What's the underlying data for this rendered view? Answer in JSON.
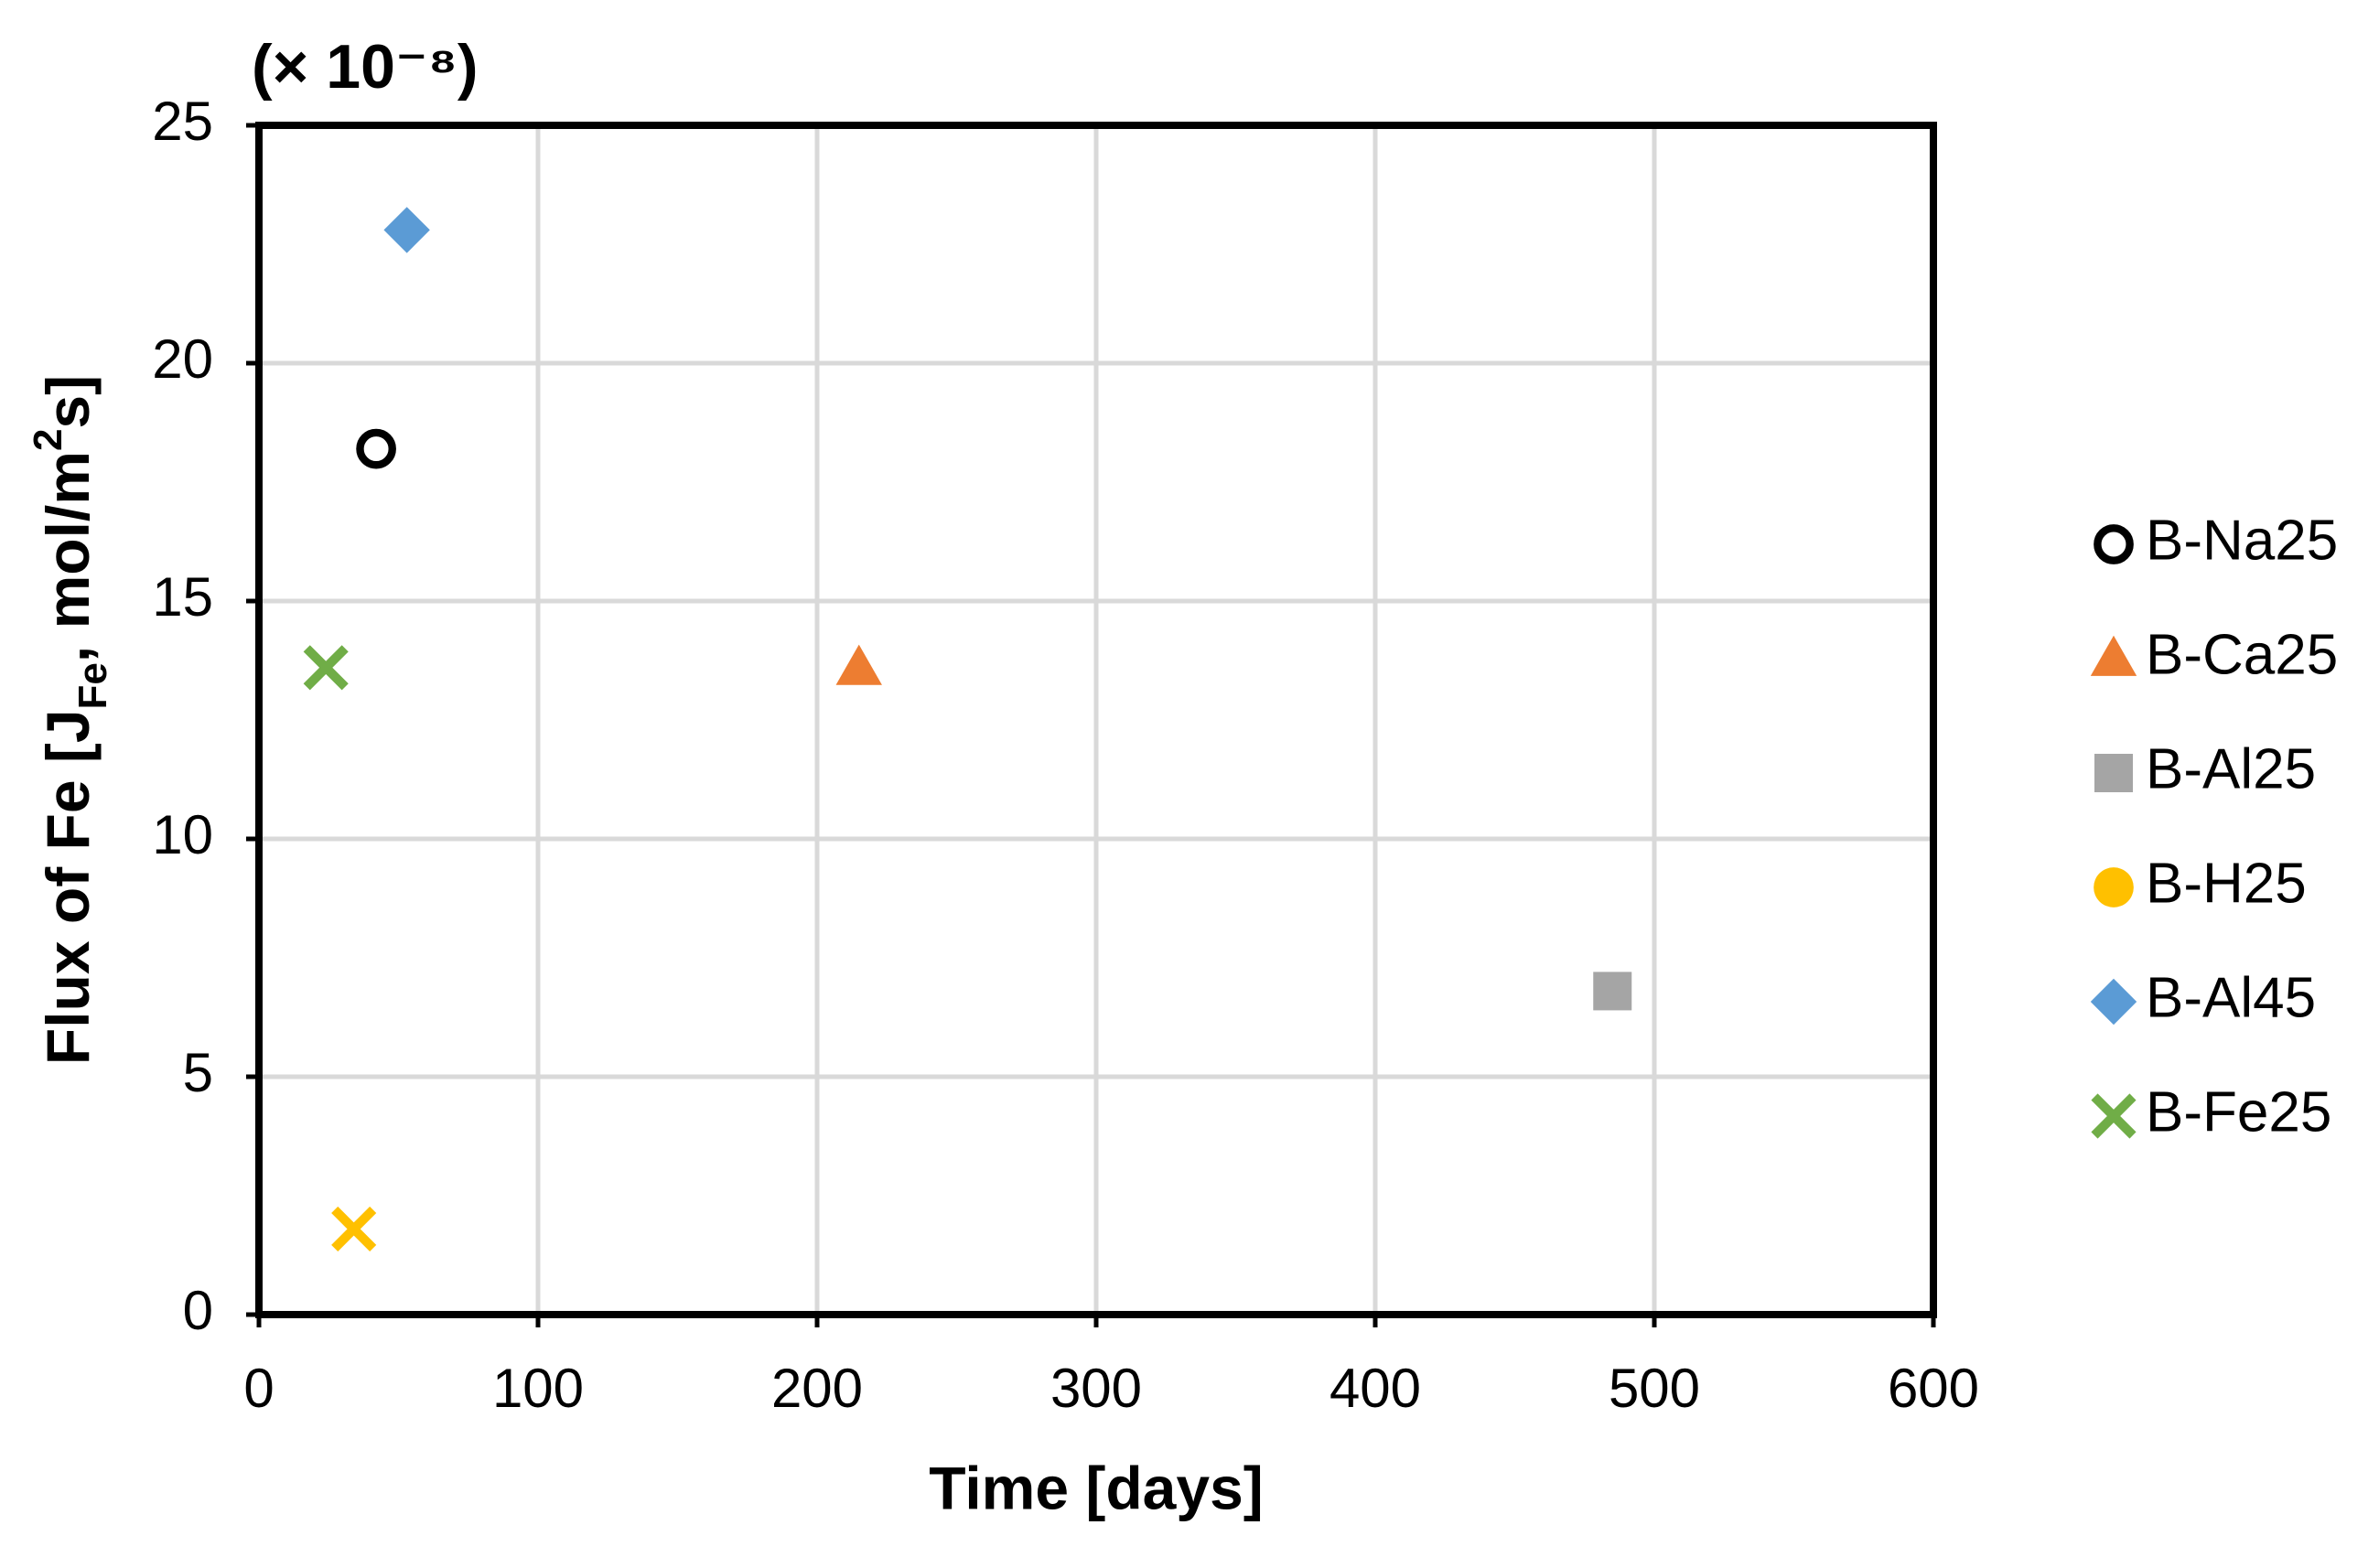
{
  "chart_data": {
    "type": "scatter",
    "scale_label": "(× 10⁻⁸)",
    "xlabel": "Time [days]",
    "ylabel": [
      "Flux of Fe [J",
      "Fe",
      ", mol/m",
      "2",
      "s]"
    ],
    "ylabel_shift": [
      "baseline",
      "sub",
      "baseline",
      "super",
      "baseline"
    ],
    "xlim": [
      0,
      600
    ],
    "xticks": [
      0,
      100,
      200,
      300,
      400,
      500,
      600
    ],
    "ylim": [
      0,
      25
    ],
    "yticks": [
      0,
      5,
      10,
      15,
      20,
      25
    ],
    "grid": true,
    "legend": "right",
    "series": [
      {
        "name": "B-Na25",
        "color": "#000000",
        "marker": "ring",
        "x": [
          42
        ],
        "values": [
          18.2
        ]
      },
      {
        "name": "B-Ca25",
        "color": "#ed7d31",
        "marker": "triangle",
        "x": [
          215
        ],
        "values": [
          13.6
        ]
      },
      {
        "name": "B-Al25",
        "color": "#a5a5a5",
        "marker": "square",
        "x": [
          485
        ],
        "values": [
          6.8
        ]
      },
      {
        "name": "B-H25",
        "color": "#ffc000",
        "marker": "circle",
        "x": [
          34
        ],
        "values": [
          1.8
        ]
      },
      {
        "name": "B-Al45",
        "color": "#5b9bd5",
        "marker": "diamond",
        "x": [
          53
        ],
        "values": [
          22.8
        ]
      },
      {
        "name": "B-Fe25",
        "color": "#70ad47",
        "marker": "cross",
        "x": [
          24
        ],
        "values": [
          13.6
        ]
      }
    ]
  }
}
